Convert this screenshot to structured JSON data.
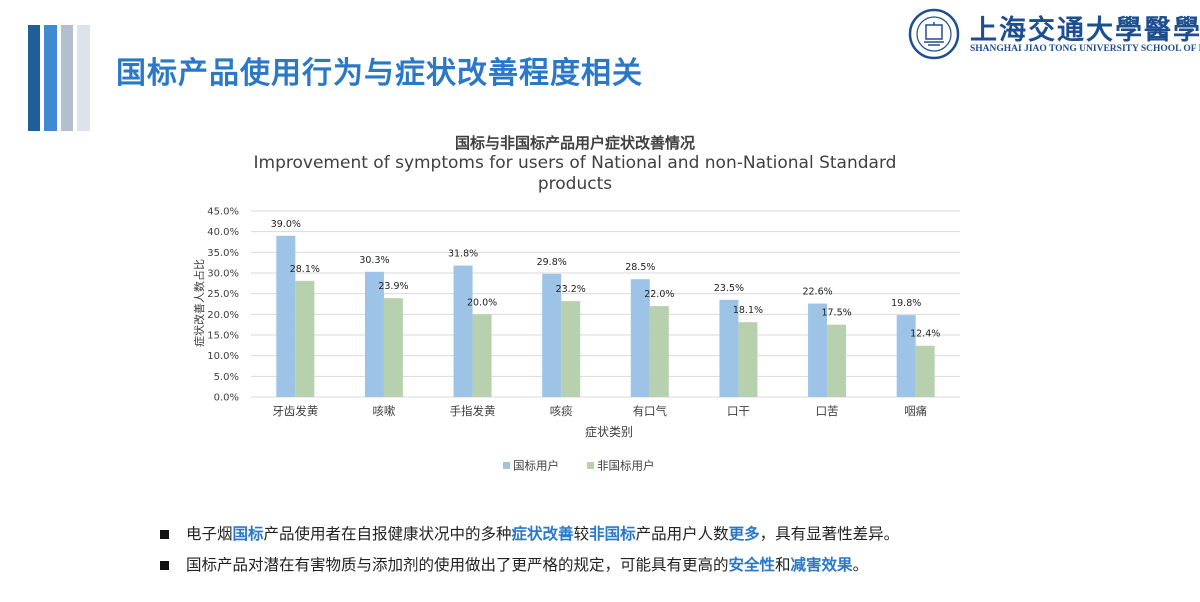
{
  "slide": {
    "title": "国标产品使用行为与症状改善程度相关"
  },
  "logo": {
    "name_cn": "上海交通大學醫學院",
    "name_en": "SHANGHAI JIAO TONG UNIVERSITY SCHOOL OF MEDICINE",
    "emblem_icon": "university-seal-icon"
  },
  "colors": {
    "title": "#2a78c6",
    "national": "#9dc3e6",
    "non_national": "#b7d1ae",
    "highlight": "#2a78c6",
    "deco_bars": [
      "#1f5f97",
      "#3f8ad0",
      "#b3bfcc",
      "#dde3ea"
    ]
  },
  "chart_data": {
    "type": "bar",
    "title": "国标与非国标产品用户症状改善情况",
    "subtitle": "Improvement of symptoms for users of National and non-National Standard products",
    "subtitle_lines": [
      "Improvement of symptoms for users of National and non-National Standard",
      "products"
    ],
    "xlabel": "症状类别",
    "ylabel": "症状改善人数占比",
    "categories": [
      "牙齿发黄",
      "咳嗽",
      "手指发黄",
      "咳痰",
      "有口气",
      "口干",
      "口苦",
      "咽痛"
    ],
    "series": [
      {
        "name": "国标用户",
        "values": [
          39.0,
          30.3,
          31.8,
          29.8,
          28.5,
          23.5,
          22.6,
          19.8
        ],
        "labels": [
          "39.0%",
          "30.3%",
          "31.8%",
          "29.8%",
          "28.5%",
          "23.5%",
          "22.6%",
          "19.8%"
        ]
      },
      {
        "name": "非国标用户",
        "values": [
          28.1,
          23.9,
          20.0,
          23.2,
          22.0,
          18.1,
          17.5,
          12.4
        ],
        "labels": [
          "28.1%",
          "23.9%",
          "20.0%",
          "23.2%",
          "22.0%",
          "18.1%",
          "17.5%",
          "12.4%"
        ]
      }
    ],
    "yticks": [
      "0.0%",
      "5.0%",
      "10.0%",
      "15.0%",
      "20.0%",
      "25.0%",
      "30.0%",
      "35.0%",
      "40.0%",
      "45.0%"
    ],
    "ylim": [
      0,
      45
    ],
    "grid": true,
    "legend": "bottom-center"
  },
  "bullets": [
    {
      "segments": [
        {
          "text": "电子烟",
          "hl": false
        },
        {
          "text": "国标",
          "hl": true
        },
        {
          "text": "产品使用者在自报健康状况中的多种",
          "hl": false
        },
        {
          "text": "症状改善",
          "hl": true
        },
        {
          "text": "较",
          "hl": false
        },
        {
          "text": "非国标",
          "hl": true
        },
        {
          "text": "产品用户人数",
          "hl": false
        },
        {
          "text": "更多",
          "hl": true
        },
        {
          "text": "，具有显著性差异。",
          "hl": false
        }
      ]
    },
    {
      "segments": [
        {
          "text": "国标产品对潜在有害物质与添加剂的使用做出了更严格的规定，可能具有更高的",
          "hl": false
        },
        {
          "text": "安全性",
          "hl": true
        },
        {
          "text": "和",
          "hl": false
        },
        {
          "text": "减害效果",
          "hl": true
        },
        {
          "text": "。",
          "hl": false
        }
      ]
    }
  ]
}
